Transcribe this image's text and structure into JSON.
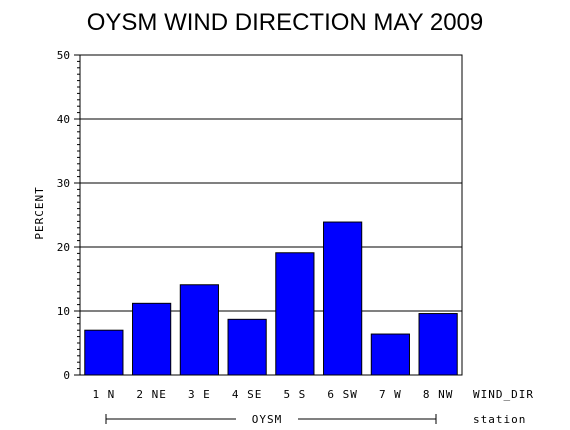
{
  "chart_data": {
    "type": "bar",
    "title": "OYSM WIND DIRECTION MAY 2009",
    "ylabel": "PERCENT",
    "xlabel": "WIND_DIR",
    "group_label": "OYSM",
    "group_axis_label": "station",
    "ylim": [
      0,
      50
    ],
    "yticks": [
      0,
      10,
      20,
      30,
      40,
      50
    ],
    "grid": true,
    "categories": [
      "1 N",
      "2 NE",
      "3 E",
      "4 SE",
      "5 S",
      "6 SW",
      "7 W",
      "8 NW"
    ],
    "values": [
      7.0,
      11.2,
      14.1,
      8.7,
      19.1,
      23.9,
      6.4,
      9.6
    ],
    "bar_color": "#0000ff"
  }
}
